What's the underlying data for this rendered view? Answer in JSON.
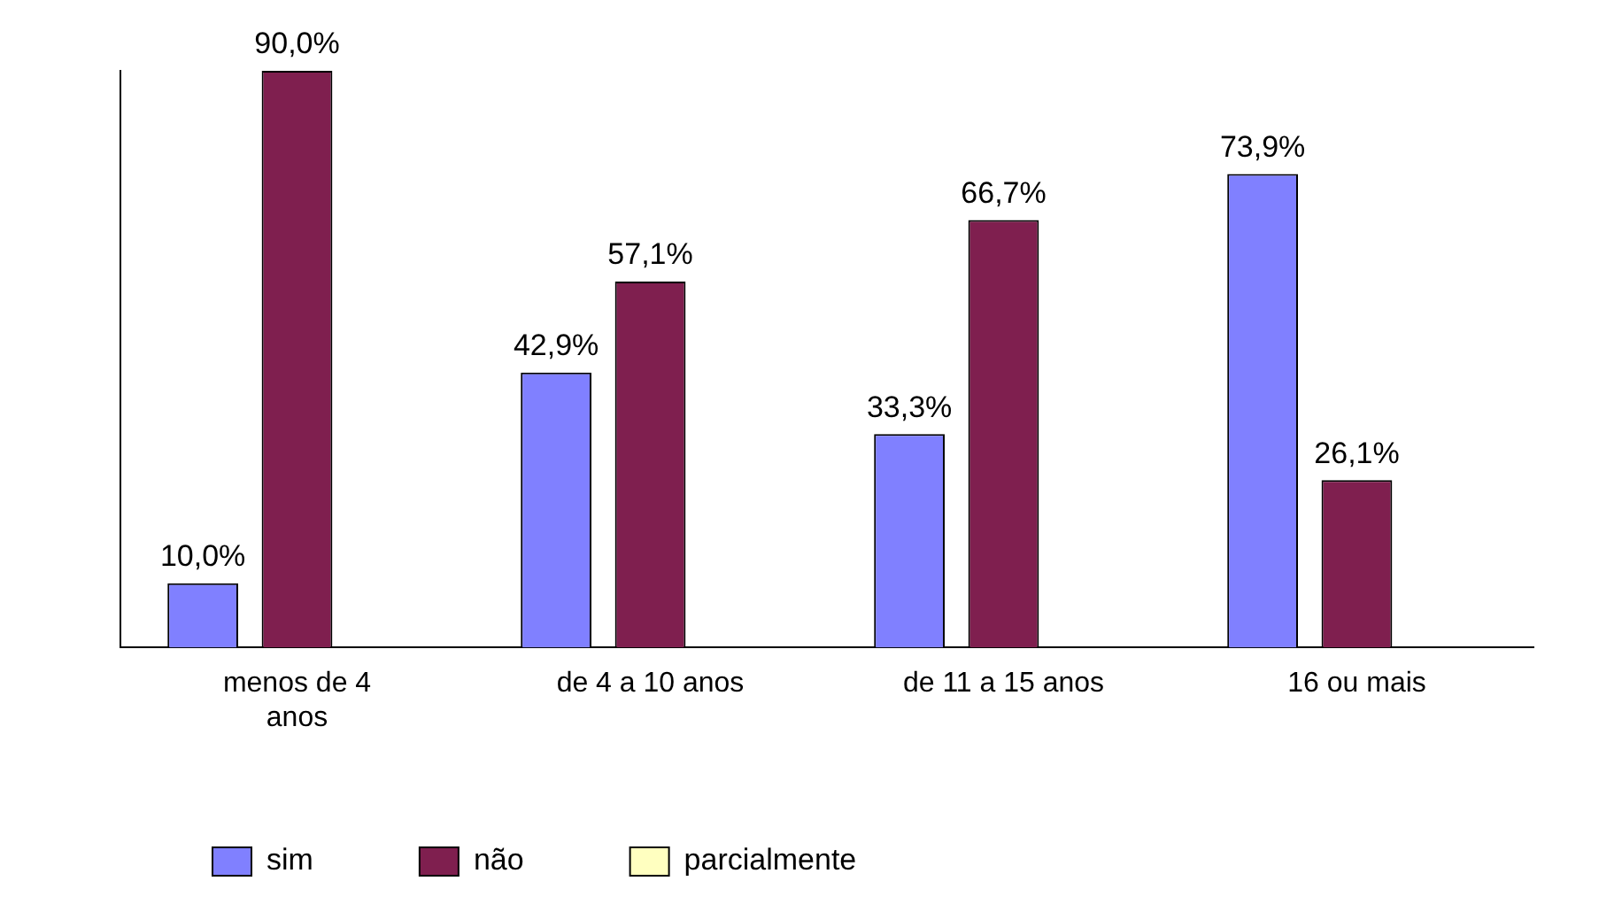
{
  "chart_data": {
    "type": "bar",
    "categories": [
      "menos de 4 anos",
      "de 4 a 10 anos",
      "de 11 a 15 anos",
      "16 ou mais"
    ],
    "series": [
      {
        "name": "sim",
        "color": "#8080ff",
        "values": [
          10.0,
          42.9,
          33.3,
          73.9
        ],
        "value_labels": [
          "10,0%",
          "42,9%",
          "33,3%",
          "73,9%"
        ]
      },
      {
        "name": "não",
        "color": "#7f1f4f",
        "values": [
          90.0,
          57.1,
          66.7,
          26.1
        ],
        "value_labels": [
          "90,0%",
          "57,1%",
          "66,7%",
          "26,1%"
        ]
      },
      {
        "name": "parcialmente",
        "color": "#ffffc0",
        "values": [
          null,
          null,
          null,
          null
        ]
      }
    ],
    "legend": "bottom",
    "grid": false
  }
}
